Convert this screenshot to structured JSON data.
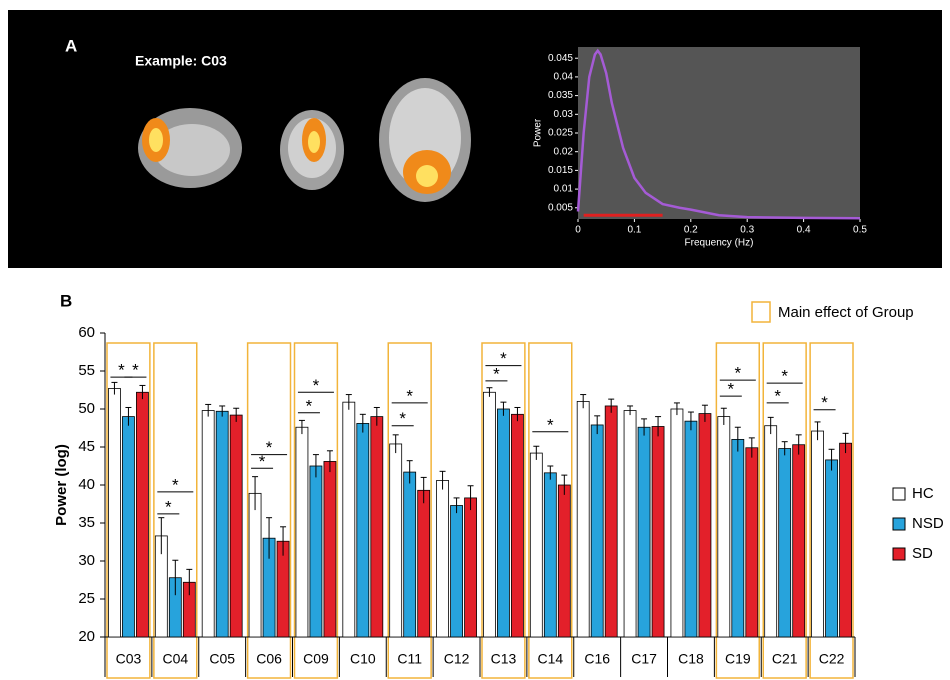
{
  "chart_data": [
    {
      "type": "line",
      "panel_label": "A",
      "subtitle": "Example: C03",
      "background": "#000000",
      "plot_background": "#555555",
      "x_label": "Frequency (Hz)",
      "y_label": "Power",
      "xlim": [
        0,
        0.5
      ],
      "xticks": [
        0,
        0.1,
        0.2,
        0.3,
        0.4,
        0.5
      ],
      "ylim": [
        0.002,
        0.048
      ],
      "yticks": [
        0.005,
        0.01,
        0.015,
        0.02,
        0.025,
        0.03,
        0.035,
        0.04,
        0.045
      ],
      "x": [
        0,
        0.01,
        0.02,
        0.03,
        0.035,
        0.04,
        0.05,
        0.06,
        0.08,
        0.1,
        0.12,
        0.15,
        0.18,
        0.2,
        0.25,
        0.3,
        0.4,
        0.5
      ],
      "series": [
        {
          "color": "#a55bd6",
          "values": [
            0.004,
            0.025,
            0.04,
            0.046,
            0.047,
            0.046,
            0.041,
            0.033,
            0.021,
            0.013,
            0.009,
            0.006,
            0.005,
            0.0045,
            0.003,
            0.0025,
            0.0023,
            0.0022
          ]
        }
      ],
      "band": {
        "x": [
          0.01,
          0.15
        ],
        "y": 0.003,
        "color": "#e02020"
      }
    },
    {
      "type": "bar",
      "panel_label": "B",
      "y_label": "Power (log)",
      "ylim": [
        20,
        60
      ],
      "yticks": [
        20,
        25,
        30,
        35,
        40,
        45,
        50,
        55,
        60
      ],
      "categories": [
        "C03",
        "C04",
        "C05",
        "C06",
        "C09",
        "C10",
        "C11",
        "C12",
        "C13",
        "C14",
        "C16",
        "C17",
        "C18",
        "C19",
        "C21",
        "C22"
      ],
      "highlight_label": "Main effect of Group",
      "highlight_color": "#f2b43a",
      "group_effect": [
        true,
        true,
        false,
        true,
        true,
        false,
        true,
        false,
        true,
        true,
        false,
        false,
        false,
        true,
        true,
        true
      ],
      "series": [
        {
          "name": "HC",
          "color": "#ffffff",
          "values": [
            52.7,
            33.3,
            49.8,
            38.9,
            47.6,
            50.9,
            45.4,
            40.6,
            52.2,
            44.2,
            51.0,
            49.8,
            50.0,
            49.0,
            47.8,
            47.1
          ],
          "errors": [
            0.8,
            2.4,
            0.8,
            2.2,
            0.9,
            1.0,
            1.2,
            1.2,
            0.6,
            0.9,
            0.9,
            0.6,
            0.8,
            1.1,
            1.1,
            1.2
          ]
        },
        {
          "name": "NSD",
          "color": "#27a3dc",
          "values": [
            49.0,
            27.8,
            49.7,
            33.0,
            42.5,
            48.1,
            41.7,
            37.3,
            50.0,
            41.6,
            47.9,
            47.6,
            48.4,
            46.0,
            44.8,
            43.3
          ],
          "errors": [
            1.2,
            2.3,
            0.7,
            2.7,
            1.5,
            1.2,
            1.5,
            1.0,
            0.9,
            0.9,
            1.2,
            1.1,
            1.2,
            1.6,
            0.9,
            1.4
          ]
        },
        {
          "name": "SD",
          "color": "#e3202a",
          "values": [
            52.2,
            27.2,
            49.2,
            32.6,
            43.1,
            49.0,
            39.3,
            38.3,
            49.3,
            40.0,
            50.4,
            47.7,
            49.4,
            44.9,
            45.3,
            45.5
          ],
          "errors": [
            0.9,
            1.7,
            0.9,
            1.9,
            1.4,
            1.2,
            1.7,
            1.6,
            0.9,
            1.3,
            0.9,
            1.3,
            1.1,
            1.3,
            1.3,
            1.3
          ]
        }
      ],
      "significance": [
        {
          "category": "C03",
          "between": [
            "HC",
            "NSD"
          ],
          "y": 54.2,
          "label": "*"
        },
        {
          "category": "C03",
          "between": [
            "NSD",
            "SD"
          ],
          "y": 54.2,
          "label": "*"
        },
        {
          "category": "C04",
          "between": [
            "HC",
            "NSD"
          ],
          "y": 36.2,
          "label": "*"
        },
        {
          "category": "C04",
          "between": [
            "HC",
            "SD"
          ],
          "y": 39.1,
          "label": "*"
        },
        {
          "category": "C06",
          "between": [
            "HC",
            "NSD"
          ],
          "y": 42.2,
          "label": "*"
        },
        {
          "category": "C06",
          "between": [
            "HC",
            "SD"
          ],
          "y": 44.0,
          "label": "*"
        },
        {
          "category": "C09",
          "between": [
            "HC",
            "NSD"
          ],
          "y": 49.5,
          "label": "*"
        },
        {
          "category": "C09",
          "between": [
            "HC",
            "SD"
          ],
          "y": 52.2,
          "label": "*"
        },
        {
          "category": "C11",
          "between": [
            "HC",
            "NSD"
          ],
          "y": 47.8,
          "label": "*"
        },
        {
          "category": "C11",
          "between": [
            "HC",
            "SD"
          ],
          "y": 50.8,
          "label": "*"
        },
        {
          "category": "C13",
          "between": [
            "HC",
            "NSD"
          ],
          "y": 53.7,
          "label": "*"
        },
        {
          "category": "C13",
          "between": [
            "HC",
            "SD"
          ],
          "y": 55.7,
          "label": "*"
        },
        {
          "category": "C14",
          "between": [
            "HC",
            "SD"
          ],
          "y": 47.0,
          "label": "*"
        },
        {
          "category": "C19",
          "between": [
            "HC",
            "NSD"
          ],
          "y": 51.7,
          "label": "*"
        },
        {
          "category": "C19",
          "between": [
            "HC",
            "SD"
          ],
          "y": 53.8,
          "label": "*"
        },
        {
          "category": "C21",
          "between": [
            "HC",
            "NSD"
          ],
          "y": 50.8,
          "label": "*"
        },
        {
          "category": "C21",
          "between": [
            "HC",
            "SD"
          ],
          "y": 53.4,
          "label": "*"
        },
        {
          "category": "C22",
          "between": [
            "HC",
            "NSD"
          ],
          "y": 49.9,
          "label": "*"
        }
      ]
    }
  ]
}
